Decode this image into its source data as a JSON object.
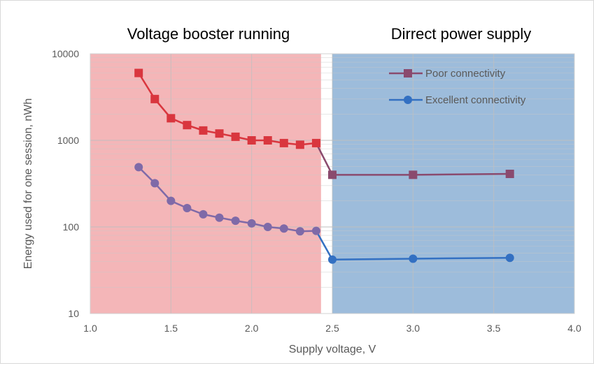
{
  "chart_data": {
    "type": "line",
    "title": "",
    "region_labels": {
      "left": "Voltage booster running",
      "right": "Dirrect power supply"
    },
    "xlabel": "Supply voltage, V",
    "ylabel": "Energy used for one session, nWh",
    "xlim": [
      1.0,
      4.0
    ],
    "ylim": [
      10,
      10000
    ],
    "y_scale": "log",
    "x_ticks": [
      "1.0",
      "1.5",
      "2.0",
      "2.5",
      "3.0",
      "3.5",
      "4.0"
    ],
    "y_ticks": [
      "10",
      "100",
      "1000",
      "10000"
    ],
    "regions": [
      {
        "x_from": 1.0,
        "x_to": 2.43,
        "color": "#f4b6b8"
      },
      {
        "x_from": 2.5,
        "x_to": 4.0,
        "color": "#9dbcdb"
      }
    ],
    "grid": true,
    "legend_position": "top-right",
    "series": [
      {
        "name": "Poor connectivity",
        "marker": "square",
        "segments": [
          {
            "color": "#d9363e",
            "x": [
              1.3,
              1.4,
              1.5,
              1.6,
              1.7,
              1.8,
              1.9,
              2.0,
              2.1,
              2.2,
              2.3,
              2.4
            ],
            "y": [
              6000,
              3000,
              1800,
              1500,
              1300,
              1200,
              1100,
              1000,
              1000,
              930,
              890,
              930
            ]
          },
          {
            "color": "#8a4a6e",
            "x": [
              2.4,
              2.5,
              3.0,
              3.6
            ],
            "y": [
              930,
              400,
              400,
              410
            ]
          }
        ],
        "legend_color": "#8a4a6e"
      },
      {
        "name": "Excellent connectivity",
        "marker": "circle",
        "segments": [
          {
            "color": "#7f6aa8",
            "x": [
              1.3,
              1.4,
              1.5,
              1.6,
              1.7,
              1.8,
              1.9,
              2.0,
              2.1,
              2.2,
              2.3,
              2.4
            ],
            "y": [
              490,
              320,
              200,
              165,
              140,
              128,
              118,
              110,
              100,
              96,
              89,
              90
            ]
          },
          {
            "color": "#3370c2",
            "x": [
              2.4,
              2.5,
              3.0,
              3.6
            ],
            "y": [
              90,
              42,
              43,
              44
            ]
          }
        ],
        "legend_color": "#3370c2"
      }
    ]
  }
}
